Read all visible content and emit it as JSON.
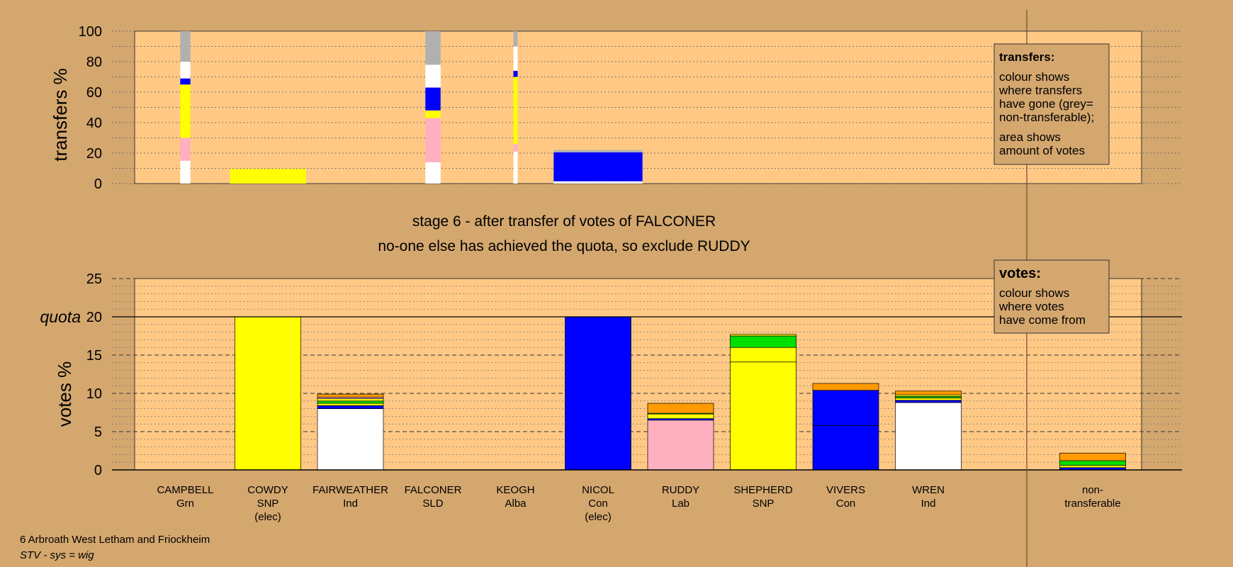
{
  "colors": {
    "background": "#d4a76f",
    "panel": "#ffc985",
    "SNP": "#ffff00",
    "Con": "#0000ff",
    "Lab": "#ffb0c0",
    "Ind": "#ffffff",
    "Grn": "#00e000",
    "LD": "#ff9a00",
    "nontransferable": "#b0b0b0"
  },
  "texts": {
    "stage_title": "stage 6 - after transfer of votes of FALCONER",
    "stage_subtitle": "no-one else has achieved the quota, so exclude RUDDY",
    "ward": "6 Arbroath West Letham and Friockheim",
    "system": "STV - sys = wig",
    "quota_label": "quota",
    "transfers_legend_title": "transfers:",
    "transfers_legend_lines": [
      "colour shows",
      "where transfers",
      "have gone (grey=",
      "non-transferable);",
      "area shows",
      "amount of votes"
    ],
    "votes_legend_title": "votes:",
    "votes_legend_lines": [
      "colour shows",
      "where votes",
      "have come from"
    ]
  },
  "chart_data": [
    {
      "type": "bar",
      "name": "transfers",
      "ylabel": "transfers %",
      "ylim": [
        0,
        100
      ],
      "yticks": [
        0,
        20,
        40,
        60,
        80,
        100
      ],
      "grid": true,
      "bars": [
        {
          "candidate": "CAMPBELL",
          "width_pct": 1.2,
          "segments": [
            {
              "party": "Ind",
              "value": 15
            },
            {
              "party": "Lab",
              "value": 15
            },
            {
              "party": "SNP",
              "value": 35
            },
            {
              "party": "Con",
              "value": 4
            },
            {
              "party": "Ind",
              "value": 11
            },
            {
              "party": "nontransferable",
              "value": 20
            }
          ]
        },
        {
          "candidate": "COWDY",
          "width_pct": 9.0,
          "segments": [
            {
              "party": "SNP",
              "value": 9.5
            }
          ]
        },
        {
          "candidate": "FALCONER",
          "width_pct": 1.8,
          "segments": [
            {
              "party": "Ind",
              "value": 14
            },
            {
              "party": "Lab",
              "value": 29
            },
            {
              "party": "SNP",
              "value": 5
            },
            {
              "party": "Con",
              "value": 15
            },
            {
              "party": "Ind",
              "value": 15
            },
            {
              "party": "nontransferable",
              "value": 22
            }
          ]
        },
        {
          "candidate": "KEOGH",
          "width_pct": 0.5,
          "segments": [
            {
              "party": "Ind",
              "value": 21
            },
            {
              "party": "Lab",
              "value": 5
            },
            {
              "party": "SNP",
              "value": 44
            },
            {
              "party": "Con",
              "value": 4
            },
            {
              "party": "Ind",
              "value": 16
            },
            {
              "party": "nontransferable",
              "value": 10
            }
          ]
        },
        {
          "candidate": "NICOL",
          "width_pct": 10.5,
          "segments": [
            {
              "party": "Ind",
              "value": 1.5
            },
            {
              "party": "Con",
              "value": 19
            },
            {
              "party": "nontransferable",
              "value": 1.5
            }
          ]
        }
      ]
    },
    {
      "type": "bar",
      "name": "votes",
      "ylabel": "votes %",
      "ylim": [
        0,
        25
      ],
      "yticks": [
        0,
        5,
        10,
        15,
        20,
        25
      ],
      "quota": 20,
      "grid": true,
      "categories": [
        {
          "name": "CAMPBELL",
          "party": "Grn",
          "note": ""
        },
        {
          "name": "COWDY",
          "party": "SNP",
          "note": "(elec)"
        },
        {
          "name": "FAIRWEATHER",
          "party": "Ind",
          "note": ""
        },
        {
          "name": "FALCONER",
          "party": "SLD",
          "note": ""
        },
        {
          "name": "KEOGH",
          "party": "Alba",
          "note": ""
        },
        {
          "name": "NICOL",
          "party": "Con",
          "note": "(elec)"
        },
        {
          "name": "RUDDY",
          "party": "Lab",
          "note": ""
        },
        {
          "name": "SHEPHERD",
          "party": "SNP",
          "note": ""
        },
        {
          "name": "VIVERS",
          "party": "Con",
          "note": ""
        },
        {
          "name": "WREN",
          "party": "Ind",
          "note": ""
        },
        {
          "name": "non-",
          "party": "transferable",
          "note": ""
        }
      ],
      "stacks": [
        [],
        [
          {
            "party": "SNP",
            "value": 20
          }
        ],
        [
          {
            "party": "Ind",
            "value": 8.0
          },
          {
            "party": "Con",
            "value": 0.4
          },
          {
            "party": "SNP",
            "value": 0.3
          },
          {
            "party": "Grn",
            "value": 0.3
          },
          {
            "party": "SNP",
            "value": 0.3
          },
          {
            "party": "Lab",
            "value": 0.2
          },
          {
            "party": "LD",
            "value": 0.4
          }
        ],
        [],
        [],
        [
          {
            "party": "Con",
            "value": 20
          }
        ],
        [
          {
            "party": "Lab",
            "value": 6.5
          },
          {
            "party": "Con",
            "value": 0.2
          },
          {
            "party": "SNP",
            "value": 0.6
          },
          {
            "party": "Grn",
            "value": 0.1
          },
          {
            "party": "LD",
            "value": 1.3
          }
        ],
        [
          {
            "party": "SNP",
            "value": 14.1
          },
          {
            "party": "SNP",
            "value": 1.9
          },
          {
            "party": "Grn",
            "value": 1.5
          },
          {
            "party": "SNP",
            "value": 0.2
          }
        ],
        [
          {
            "party": "Con",
            "value": 5.8
          },
          {
            "party": "Con",
            "value": 4.6
          },
          {
            "party": "LD",
            "value": 0.9
          }
        ],
        [
          {
            "party": "Ind",
            "value": 8.8
          },
          {
            "party": "Con",
            "value": 0.3
          },
          {
            "party": "SNP",
            "value": 0.3
          },
          {
            "party": "Grn",
            "value": 0.2
          },
          {
            "party": "SNP",
            "value": 0.2
          },
          {
            "party": "LD",
            "value": 0.5
          }
        ],
        [
          {
            "party": "Con",
            "value": 0.3
          },
          {
            "party": "SNP",
            "value": 0.3
          },
          {
            "party": "Grn",
            "value": 0.6
          },
          {
            "party": "LD",
            "value": 1.0
          }
        ]
      ]
    }
  ]
}
